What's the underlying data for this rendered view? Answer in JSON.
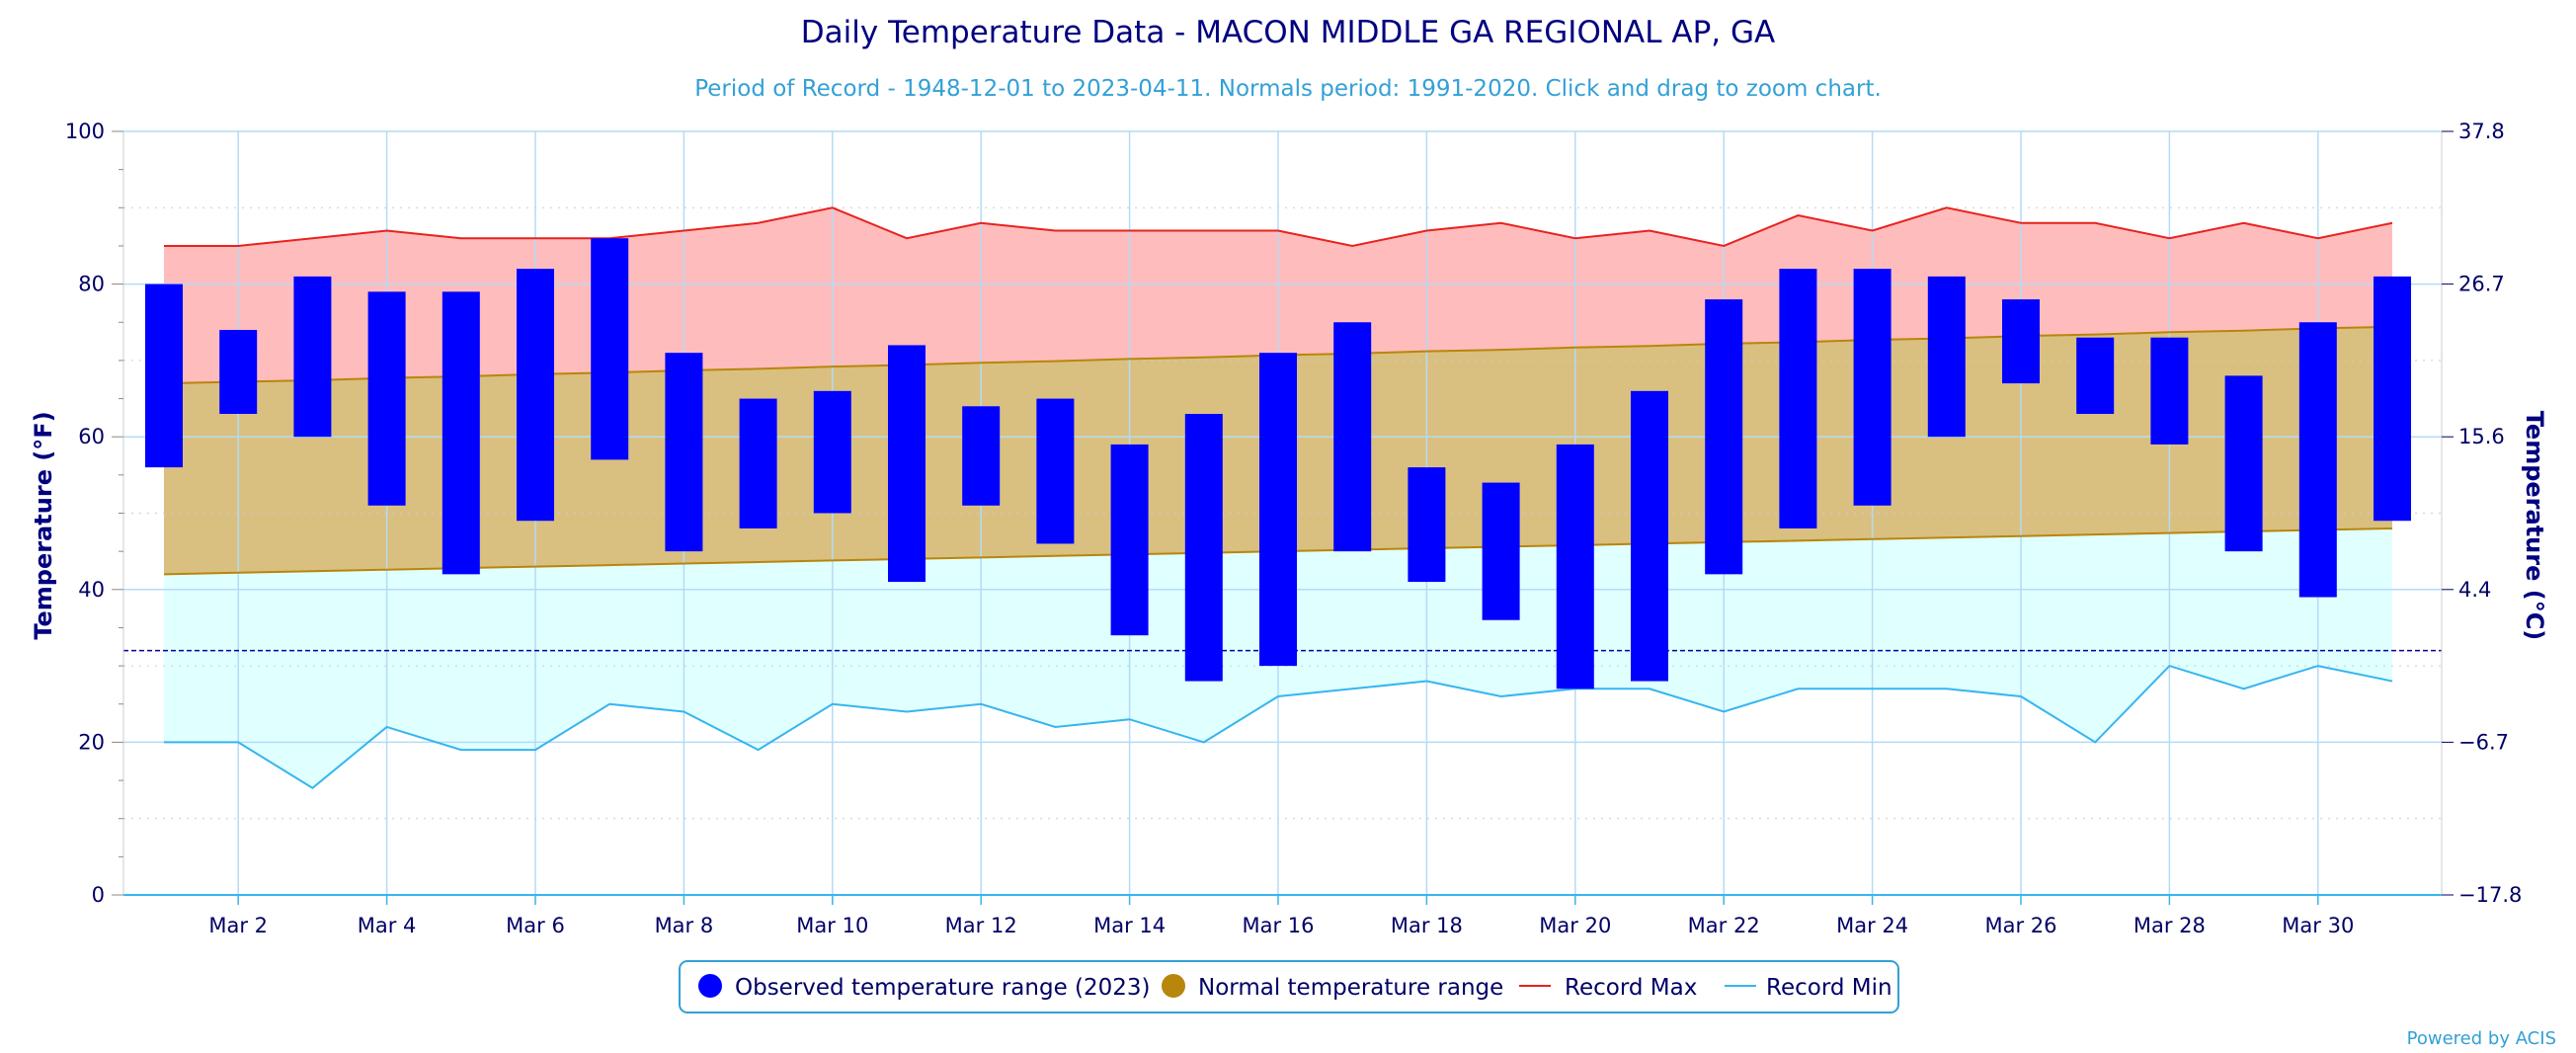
{
  "colors": {
    "title": "#000080",
    "subtitle": "#33a0d6",
    "observed": "#0000ff",
    "normal": "#d9c080",
    "normal_line": "#b8860b",
    "record_max_fill": "#ffbcbc",
    "record_max_line": "#e8221e",
    "record_min_fill": "#e0ffff",
    "record_min_line": "#36b5ef",
    "grid": "#b3dbf5",
    "freezing_line": "#000099"
  },
  "chart_data": {
    "type": "bar",
    "title": "Daily Temperature Data - MACON MIDDLE GA REGIONAL AP, GA",
    "subtitle": "Period of Record - 1948-12-01 to 2023-04-11. Normals period: 1991-2020. Click and drag to zoom chart.",
    "ylabel": "Temperature (°F)",
    "ylabel_right": "Temperature (°C)",
    "ylim": [
      0,
      100
    ],
    "xlim": [
      1,
      31
    ],
    "y_ticks": [
      0,
      20,
      40,
      60,
      80,
      100
    ],
    "y_ticks_right": [
      "-17.8",
      "-6.7",
      "4.4",
      "15.6",
      "26.7",
      "37.8"
    ],
    "x_ticks": [
      "Mar 2",
      "Mar 4",
      "Mar 6",
      "Mar 8",
      "Mar 10",
      "Mar 12",
      "Mar 14",
      "Mar 16",
      "Mar 18",
      "Mar 20",
      "Mar 22",
      "Mar 24",
      "Mar 26",
      "Mar 28",
      "Mar 30"
    ],
    "x_tick_days": [
      2,
      4,
      6,
      8,
      10,
      12,
      14,
      16,
      18,
      20,
      22,
      24,
      26,
      28,
      30
    ],
    "freezing_line": 32,
    "grid": true,
    "legend_position": "bottom",
    "days": [
      1,
      2,
      3,
      4,
      5,
      6,
      7,
      8,
      9,
      10,
      11,
      12,
      13,
      14,
      15,
      16,
      17,
      18,
      19,
      20,
      21,
      22,
      23,
      24,
      25,
      26,
      27,
      28,
      29,
      30,
      31
    ],
    "series": [
      {
        "name": "Observed temperature range (2023)",
        "low": [
          56,
          63,
          60,
          51,
          42,
          49,
          57,
          45,
          48,
          50,
          41,
          51,
          46,
          34,
          28,
          30,
          45,
          41,
          36,
          27,
          28,
          42,
          48,
          51,
          60,
          67,
          63,
          59,
          45,
          39,
          49
        ],
        "high": [
          80,
          74,
          81,
          79,
          79,
          82,
          86,
          71,
          65,
          66,
          72,
          64,
          65,
          59,
          63,
          71,
          75,
          56,
          54,
          59,
          66,
          78,
          82,
          82,
          81,
          78,
          73,
          73,
          68,
          75,
          81
        ]
      },
      {
        "name": "Normal temperature range",
        "low": [
          42,
          42.2,
          42.4,
          42.6,
          42.8,
          43,
          43.2,
          43.4,
          43.6,
          43.8,
          44,
          44.2,
          44.4,
          44.6,
          44.8,
          45,
          45.2,
          45.4,
          45.6,
          45.8,
          46,
          46.2,
          46.4,
          46.6,
          46.8,
          47,
          47.2,
          47.4,
          47.6,
          47.8,
          48
        ],
        "high": [
          67,
          67.2,
          67.4,
          67.7,
          67.9,
          68.2,
          68.4,
          68.7,
          68.9,
          69.2,
          69.4,
          69.7,
          69.9,
          70.2,
          70.4,
          70.7,
          70.9,
          71.2,
          71.4,
          71.7,
          71.9,
          72.2,
          72.4,
          72.7,
          72.9,
          73.2,
          73.4,
          73.7,
          73.9,
          74.2,
          74.4
        ]
      },
      {
        "name": "Record Max",
        "values": [
          85,
          85,
          86,
          87,
          86,
          86,
          86,
          87,
          88,
          90,
          86,
          88,
          87,
          87,
          87,
          87,
          85,
          87,
          88,
          86,
          87,
          85,
          89,
          87,
          90,
          88,
          88,
          86,
          88,
          86,
          88
        ]
      },
      {
        "name": "Record Min",
        "values": [
          20,
          20,
          14,
          22,
          19,
          19,
          25,
          24,
          19,
          25,
          24,
          25,
          22,
          23,
          20,
          26,
          27,
          28,
          26,
          27,
          27,
          24,
          27,
          27,
          27,
          26,
          20,
          30,
          27,
          30,
          28
        ]
      }
    ]
  },
  "legend": {
    "observed_label": "Observed temperature range (2023)",
    "normal_label": "Normal temperature range",
    "record_max_label": "Record Max",
    "record_min_label": "Record Min"
  },
  "credit": "Powered by ACIS"
}
